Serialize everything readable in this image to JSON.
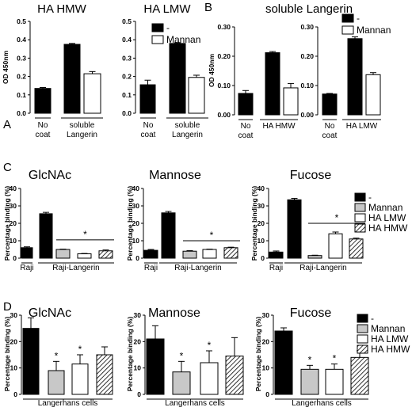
{
  "colors": {
    "black": "#000000",
    "gray": "#c8c8c8",
    "white": "#ffffff"
  },
  "chart_data": [
    {
      "id": "A1",
      "panel_letter": "A",
      "type": "bar",
      "title": "HA HMW",
      "xlabel": "",
      "ylabel": "OD 450nm",
      "ylim": [
        0,
        0.5
      ],
      "yticks": [
        "0.0",
        "0.1",
        "0.2",
        "0.3",
        "0.4",
        "0.5"
      ],
      "groups": [
        {
          "label": "No coat",
          "lines": [
            "No",
            "coat"
          ]
        },
        {
          "label": "soluble Langerin",
          "lines": [
            "soluble",
            "Langerin"
          ]
        }
      ],
      "legend": [],
      "bars": [
        {
          "group": 0,
          "series": 0,
          "value": 0.135,
          "err": 0.005
        },
        {
          "group": 1,
          "series": 0,
          "value": 0.375,
          "err": 0.005
        },
        {
          "group": 1,
          "series": 1,
          "value": 0.215,
          "err": 0.012
        }
      ]
    },
    {
      "id": "A2",
      "type": "bar",
      "title": "HA LMW",
      "xlabel": "",
      "ylabel": "",
      "ylim": [
        0,
        0.5
      ],
      "yticks": [
        "0.0",
        "0.1",
        "0.2",
        "0.3",
        "0.4",
        "0.5"
      ],
      "groups": [
        {
          "label": "No coat",
          "lines": [
            "No",
            "coat"
          ]
        },
        {
          "label": "soluble Langerin",
          "lines": [
            "soluble",
            "Langerin"
          ]
        }
      ],
      "legend": [
        {
          "label": "-",
          "fill": "black"
        },
        {
          "label": "Mannan",
          "fill": "white"
        }
      ],
      "bars": [
        {
          "group": 0,
          "series": 0,
          "value": 0.155,
          "err": 0.025
        },
        {
          "group": 1,
          "series": 0,
          "value": 0.38,
          "err": 0.004
        },
        {
          "group": 1,
          "series": 1,
          "value": 0.195,
          "err": 0.012
        }
      ]
    },
    {
      "id": "B1",
      "panel_letter": "B",
      "type": "bar",
      "title": "soluble Langerin",
      "xlabel": "",
      "ylabel": "OD 450nm",
      "ylim": [
        0,
        0.3
      ],
      "yticks": [
        "0.00",
        "0.10",
        "0.20",
        "0.30"
      ],
      "groups": [
        {
          "label": "No coat",
          "lines": [
            "No",
            "coat"
          ]
        },
        {
          "label": "HA HMW",
          "lines": [
            "HA HMW"
          ]
        }
      ],
      "legend": [],
      "bars": [
        {
          "group": 0,
          "series": 0,
          "value": 0.073,
          "err": 0.01
        },
        {
          "group": 1,
          "series": 0,
          "value": 0.212,
          "err": 0.004
        },
        {
          "group": 1,
          "series": 1,
          "value": 0.092,
          "err": 0.015
        }
      ]
    },
    {
      "id": "B2",
      "type": "bar",
      "title": "",
      "xlabel": "",
      "ylabel": "",
      "ylim": [
        0,
        0.3
      ],
      "yticks": [
        "0.00",
        "0.10",
        "0.20",
        "0.30"
      ],
      "groups": [
        {
          "label": "No coat",
          "lines": [
            "No",
            "coat"
          ]
        },
        {
          "label": "HA LMW",
          "lines": [
            "HA LMW"
          ]
        }
      ],
      "legend": [
        {
          "label": "-",
          "fill": "black"
        },
        {
          "label": "Mannan",
          "fill": "white"
        }
      ],
      "bars": [
        {
          "group": 0,
          "series": 0,
          "value": 0.071,
          "err": 0.002
        },
        {
          "group": 1,
          "series": 0,
          "value": 0.26,
          "err": 0.006
        },
        {
          "group": 1,
          "series": 1,
          "value": 0.137,
          "err": 0.007
        }
      ]
    },
    {
      "id": "C1",
      "panel_letter": "C",
      "type": "bar",
      "title": "GlcNAc",
      "xlabel": "",
      "ylabel": "Percentage binding (%)",
      "ylim": [
        0,
        40
      ],
      "yticks": [
        "0",
        "10",
        "20",
        "30",
        "40"
      ],
      "groups": [
        {
          "label": "Raji",
          "lines": [
            "Raji"
          ]
        },
        {
          "label": "Raji-Langerin",
          "lines": [
            "Raji-Langerin"
          ]
        }
      ],
      "legend": [],
      "significance": "*",
      "bars": [
        {
          "group": 0,
          "series": 0,
          "value": 6.0,
          "err": 0.5
        },
        {
          "group": 1,
          "series": 0,
          "value": 25.5,
          "err": 0.8
        },
        {
          "group": 1,
          "series": 1,
          "value": 5.0,
          "err": 0.2
        },
        {
          "group": 1,
          "series": 2,
          "value": 2.5,
          "err": 0.2
        },
        {
          "group": 1,
          "series": 3,
          "value": 4.2,
          "err": 0.5
        }
      ]
    },
    {
      "id": "C2",
      "type": "bar",
      "title": "Mannose",
      "xlabel": "",
      "ylabel": "Percentage binding (%)",
      "ylim": [
        0,
        40
      ],
      "yticks": [
        "0",
        "10",
        "20",
        "30",
        "40"
      ],
      "groups": [
        {
          "label": "Raji",
          "lines": [
            "Raji"
          ]
        },
        {
          "label": "Raji-Langerin",
          "lines": [
            "Raji-Langerin"
          ]
        }
      ],
      "legend": [],
      "significance": "*",
      "bars": [
        {
          "group": 0,
          "series": 0,
          "value": 4.5,
          "err": 0.5
        },
        {
          "group": 1,
          "series": 0,
          "value": 26.0,
          "err": 0.8
        },
        {
          "group": 1,
          "series": 1,
          "value": 4.0,
          "err": 0.3
        },
        {
          "group": 1,
          "series": 2,
          "value": 5.0,
          "err": 0.2
        },
        {
          "group": 1,
          "series": 3,
          "value": 6.0,
          "err": 0.3
        }
      ]
    },
    {
      "id": "C3",
      "type": "bar",
      "title": "Fucose",
      "xlabel": "",
      "ylabel": "Percentage binding (%)",
      "ylim": [
        0,
        40
      ],
      "yticks": [
        "0",
        "10",
        "20",
        "30",
        "40"
      ],
      "groups": [
        {
          "label": "Raji",
          "lines": [
            "Raji"
          ]
        },
        {
          "label": "Raji-Langerin",
          "lines": [
            "Raji-Langerin"
          ]
        }
      ],
      "legend": [
        {
          "label": "-",
          "fill": "black"
        },
        {
          "label": "Mannan",
          "fill": "gray"
        },
        {
          "label": "HA LMW",
          "fill": "white"
        },
        {
          "label": "HA HMW",
          "fill": "hatch"
        }
      ],
      "significance": "*",
      "bars": [
        {
          "group": 0,
          "series": 0,
          "value": 3.5,
          "err": 0.6
        },
        {
          "group": 1,
          "series": 0,
          "value": 33.5,
          "err": 0.8
        },
        {
          "group": 1,
          "series": 1,
          "value": 1.5,
          "err": 0.2
        },
        {
          "group": 1,
          "series": 2,
          "value": 14.0,
          "err": 1.0
        },
        {
          "group": 1,
          "series": 3,
          "value": 11.0,
          "err": 0.5
        }
      ]
    },
    {
      "id": "D1",
      "panel_letter": "D",
      "type": "bar",
      "title": "GlcNAc",
      "xlabel": "",
      "ylabel": "Percentage binding (%)",
      "ylim": [
        0,
        30
      ],
      "yticks": [
        "0",
        "10",
        "20",
        "30"
      ],
      "groups": [
        {
          "label": "Langerhans cells",
          "lines": [
            "Langerhans cells"
          ]
        }
      ],
      "legend": [],
      "bars": [
        {
          "group": 0,
          "series": 0,
          "value": 25,
          "err": 4,
          "star": false
        },
        {
          "group": 0,
          "series": 1,
          "value": 9,
          "err": 3.5,
          "star": true
        },
        {
          "group": 0,
          "series": 2,
          "value": 11.5,
          "err": 3.5,
          "star": true
        },
        {
          "group": 0,
          "series": 3,
          "value": 15,
          "err": 3,
          "star": false
        }
      ]
    },
    {
      "id": "D2",
      "type": "bar",
      "title": "Mannose",
      "xlabel": "",
      "ylabel": "Percentage binding (%)",
      "ylim": [
        0,
        30
      ],
      "yticks": [
        "0",
        "10",
        "20",
        "30"
      ],
      "groups": [
        {
          "label": "Langerhans cells",
          "lines": [
            "Langerhans cells"
          ]
        }
      ],
      "legend": [],
      "bars": [
        {
          "group": 0,
          "series": 0,
          "value": 21,
          "err": 5,
          "star": false
        },
        {
          "group": 0,
          "series": 1,
          "value": 8.5,
          "err": 4,
          "star": true
        },
        {
          "group": 0,
          "series": 2,
          "value": 12,
          "err": 4.5,
          "star": true
        },
        {
          "group": 0,
          "series": 3,
          "value": 14.5,
          "err": 7,
          "star": false
        }
      ]
    },
    {
      "id": "D3",
      "type": "bar",
      "title": "Fucose",
      "xlabel": "",
      "ylabel": "Percentage binding (%)",
      "ylim": [
        0,
        30
      ],
      "yticks": [
        "0",
        "10",
        "20",
        "30"
      ],
      "groups": [
        {
          "label": "Langerhans cells",
          "lines": [
            "Langerhans cells"
          ]
        }
      ],
      "legend": [
        {
          "label": "-",
          "fill": "black"
        },
        {
          "label": "Mannan",
          "fill": "gray"
        },
        {
          "label": "HA LMW",
          "fill": "white"
        },
        {
          "label": "HA HMW",
          "fill": "hatch"
        }
      ],
      "bars": [
        {
          "group": 0,
          "series": 0,
          "value": 24,
          "err": 1.2,
          "star": false
        },
        {
          "group": 0,
          "series": 1,
          "value": 9.5,
          "err": 1.5,
          "star": true
        },
        {
          "group": 0,
          "series": 2,
          "value": 9.5,
          "err": 2,
          "star": true
        },
        {
          "group": 0,
          "series": 3,
          "value": 14,
          "err": 2.5,
          "star": false
        }
      ]
    }
  ]
}
